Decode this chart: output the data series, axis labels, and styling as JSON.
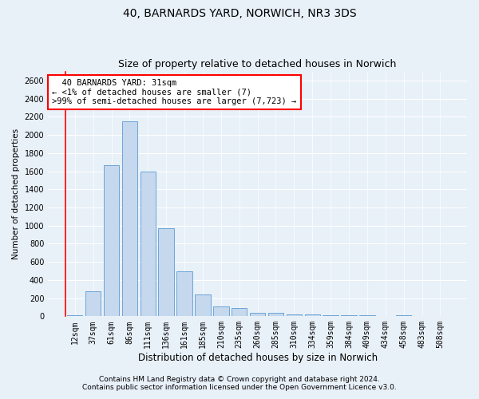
{
  "title": "40, BARNARDS YARD, NORWICH, NR3 3DS",
  "subtitle": "Size of property relative to detached houses in Norwich",
  "xlabel": "Distribution of detached houses by size in Norwich",
  "ylabel": "Number of detached properties",
  "categories": [
    "12sqm",
    "37sqm",
    "61sqm",
    "86sqm",
    "111sqm",
    "136sqm",
    "161sqm",
    "185sqm",
    "210sqm",
    "235sqm",
    "260sqm",
    "285sqm",
    "310sqm",
    "334sqm",
    "359sqm",
    "384sqm",
    "409sqm",
    "434sqm",
    "458sqm",
    "483sqm",
    "508sqm"
  ],
  "values": [
    15,
    280,
    1670,
    2150,
    1600,
    970,
    500,
    240,
    110,
    90,
    35,
    35,
    20,
    20,
    10,
    15,
    10,
    5,
    15,
    5,
    5
  ],
  "bar_color": "#c5d8ed",
  "bar_edge_color": "#5b9bd5",
  "annotation_line1": "  40 BARNARDS YARD: 31sqm",
  "annotation_line2": "← <1% of detached houses are smaller (7)",
  "annotation_line3": ">99% of semi-detached houses are larger (7,723) →",
  "annotation_box_color": "white",
  "annotation_box_edge_color": "red",
  "vline_x": -0.5,
  "ylim": [
    0,
    2700
  ],
  "yticks": [
    0,
    200,
    400,
    600,
    800,
    1000,
    1200,
    1400,
    1600,
    1800,
    2000,
    2200,
    2400,
    2600
  ],
  "footnote1": "Contains HM Land Registry data © Crown copyright and database right 2024.",
  "footnote2": "Contains public sector information licensed under the Open Government Licence v3.0.",
  "bg_color": "#e8f0f8",
  "plot_bg_color": "#e8f0f8",
  "grid_color": "white",
  "title_fontsize": 10,
  "subtitle_fontsize": 9,
  "xlabel_fontsize": 8.5,
  "ylabel_fontsize": 7.5,
  "tick_fontsize": 7,
  "annotation_fontsize": 7.5,
  "footnote_fontsize": 6.5
}
